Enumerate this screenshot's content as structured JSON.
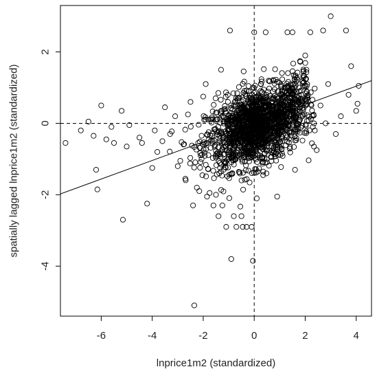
{
  "chart_data": {
    "type": "scatter",
    "title": "",
    "xlabel": "lnprice1m2 (standardized)",
    "ylabel": "spatially lagged lnprice1m2 (standardized)",
    "xlim": [
      -7.6,
      4.6
    ],
    "ylim": [
      -5.4,
      3.3
    ],
    "xticks": [
      -6,
      -4,
      -2,
      0,
      2,
      4
    ],
    "yticks": [
      -4,
      -2,
      0,
      2
    ],
    "xtick_labels": [
      "-6",
      "-4",
      "-2",
      "0",
      "2",
      "4"
    ],
    "ytick_labels": [
      "-4",
      "-2",
      "0",
      "2"
    ],
    "marker": "open-circle",
    "reference_lines": [
      {
        "orientation": "vertical",
        "value": 0,
        "style": "dashed"
      },
      {
        "orientation": "horizontal",
        "value": 0,
        "style": "dashed"
      }
    ],
    "regression_line": {
      "intercept": 0.0,
      "slope": 0.26
    },
    "dense_cloud": {
      "center": [
        0.0,
        -0.15
      ],
      "spread_x": 0.95,
      "spread_y": 0.55,
      "correlation": 0.35,
      "approx_points": 1400
    },
    "outliers": [
      {
        "x": -7.4,
        "y": -0.55
      },
      {
        "x": -6.8,
        "y": -0.2
      },
      {
        "x": -6.5,
        "y": 0.05
      },
      {
        "x": -6.3,
        "y": -0.35
      },
      {
        "x": -6.2,
        "y": -1.3
      },
      {
        "x": -6.15,
        "y": -1.85
      },
      {
        "x": -6.0,
        "y": 0.5
      },
      {
        "x": -5.8,
        "y": -0.45
      },
      {
        "x": -5.6,
        "y": -0.1
      },
      {
        "x": -5.5,
        "y": -0.55
      },
      {
        "x": -5.2,
        "y": 0.35
      },
      {
        "x": -5.15,
        "y": -2.7
      },
      {
        "x": -5.0,
        "y": -0.65
      },
      {
        "x": -4.9,
        "y": -0.05
      },
      {
        "x": -4.5,
        "y": -0.4
      },
      {
        "x": -4.4,
        "y": -0.55
      },
      {
        "x": -4.2,
        "y": -2.25
      },
      {
        "x": -4.0,
        "y": -1.25
      },
      {
        "x": -3.9,
        "y": -0.2
      },
      {
        "x": -3.8,
        "y": -0.8
      },
      {
        "x": -3.6,
        "y": -0.5
      },
      {
        "x": -3.5,
        "y": 0.45
      },
      {
        "x": -3.3,
        "y": -0.3
      },
      {
        "x": -3.1,
        "y": 0.2
      },
      {
        "x": -2.9,
        "y": -1.05
      },
      {
        "x": -2.7,
        "y": -1.55
      },
      {
        "x": -2.5,
        "y": 0.6
      },
      {
        "x": -2.4,
        "y": -2.3
      },
      {
        "x": -2.35,
        "y": -5.1
      },
      {
        "x": -2.25,
        "y": -1.8
      },
      {
        "x": -2.1,
        "y": -0.9
      },
      {
        "x": -2.0,
        "y": 0.75
      },
      {
        "x": -1.85,
        "y": -2.05
      },
      {
        "x": -1.75,
        "y": -1.95
      },
      {
        "x": -1.6,
        "y": -2.3
      },
      {
        "x": -1.5,
        "y": -2.0
      },
      {
        "x": -1.4,
        "y": -2.6
      },
      {
        "x": -1.3,
        "y": 1.5
      },
      {
        "x": -1.25,
        "y": -2.3
      },
      {
        "x": -1.1,
        "y": -2.9
      },
      {
        "x": -0.95,
        "y": 2.6
      },
      {
        "x": -0.9,
        "y": -3.8
      },
      {
        "x": -0.8,
        "y": -2.6
      },
      {
        "x": -0.7,
        "y": -2.9
      },
      {
        "x": -0.5,
        "y": -2.6
      },
      {
        "x": -0.45,
        "y": -2.9
      },
      {
        "x": -0.3,
        "y": -2.9
      },
      {
        "x": -0.1,
        "y": -2.9
      },
      {
        "x": -0.05,
        "y": -3.85
      },
      {
        "x": 0.0,
        "y": 2.55
      },
      {
        "x": 0.1,
        "y": -2.1
      },
      {
        "x": 0.35,
        "y": -1.45
      },
      {
        "x": 0.45,
        "y": 2.55
      },
      {
        "x": 0.9,
        "y": -2.05
      },
      {
        "x": 1.3,
        "y": 2.55
      },
      {
        "x": 1.5,
        "y": 2.55
      },
      {
        "x": 1.6,
        "y": -1.3
      },
      {
        "x": 2.0,
        "y": 1.9
      },
      {
        "x": 2.2,
        "y": 2.55
      },
      {
        "x": 2.45,
        "y": -0.75
      },
      {
        "x": 2.7,
        "y": 2.6
      },
      {
        "x": 2.9,
        "y": 1.1
      },
      {
        "x": 3.0,
        "y": 3.0
      },
      {
        "x": 3.2,
        "y": -0.3
      },
      {
        "x": 3.4,
        "y": 0.2
      },
      {
        "x": 3.6,
        "y": 2.6
      },
      {
        "x": 3.7,
        "y": 0.8
      },
      {
        "x": 3.8,
        "y": 1.6
      },
      {
        "x": 4.0,
        "y": 0.35
      },
      {
        "x": 4.05,
        "y": 0.55
      },
      {
        "x": 4.1,
        "y": 1.05
      },
      {
        "x": 2.6,
        "y": 0.5
      },
      {
        "x": 2.3,
        "y": -0.1
      },
      {
        "x": 2.05,
        "y": 1.5
      },
      {
        "x": -3.0,
        "y": -1.2
      },
      {
        "x": -2.6,
        "y": 0.25
      },
      {
        "x": -1.9,
        "y": 1.1
      },
      {
        "x": 2.8,
        "y": 0.0
      }
    ]
  }
}
